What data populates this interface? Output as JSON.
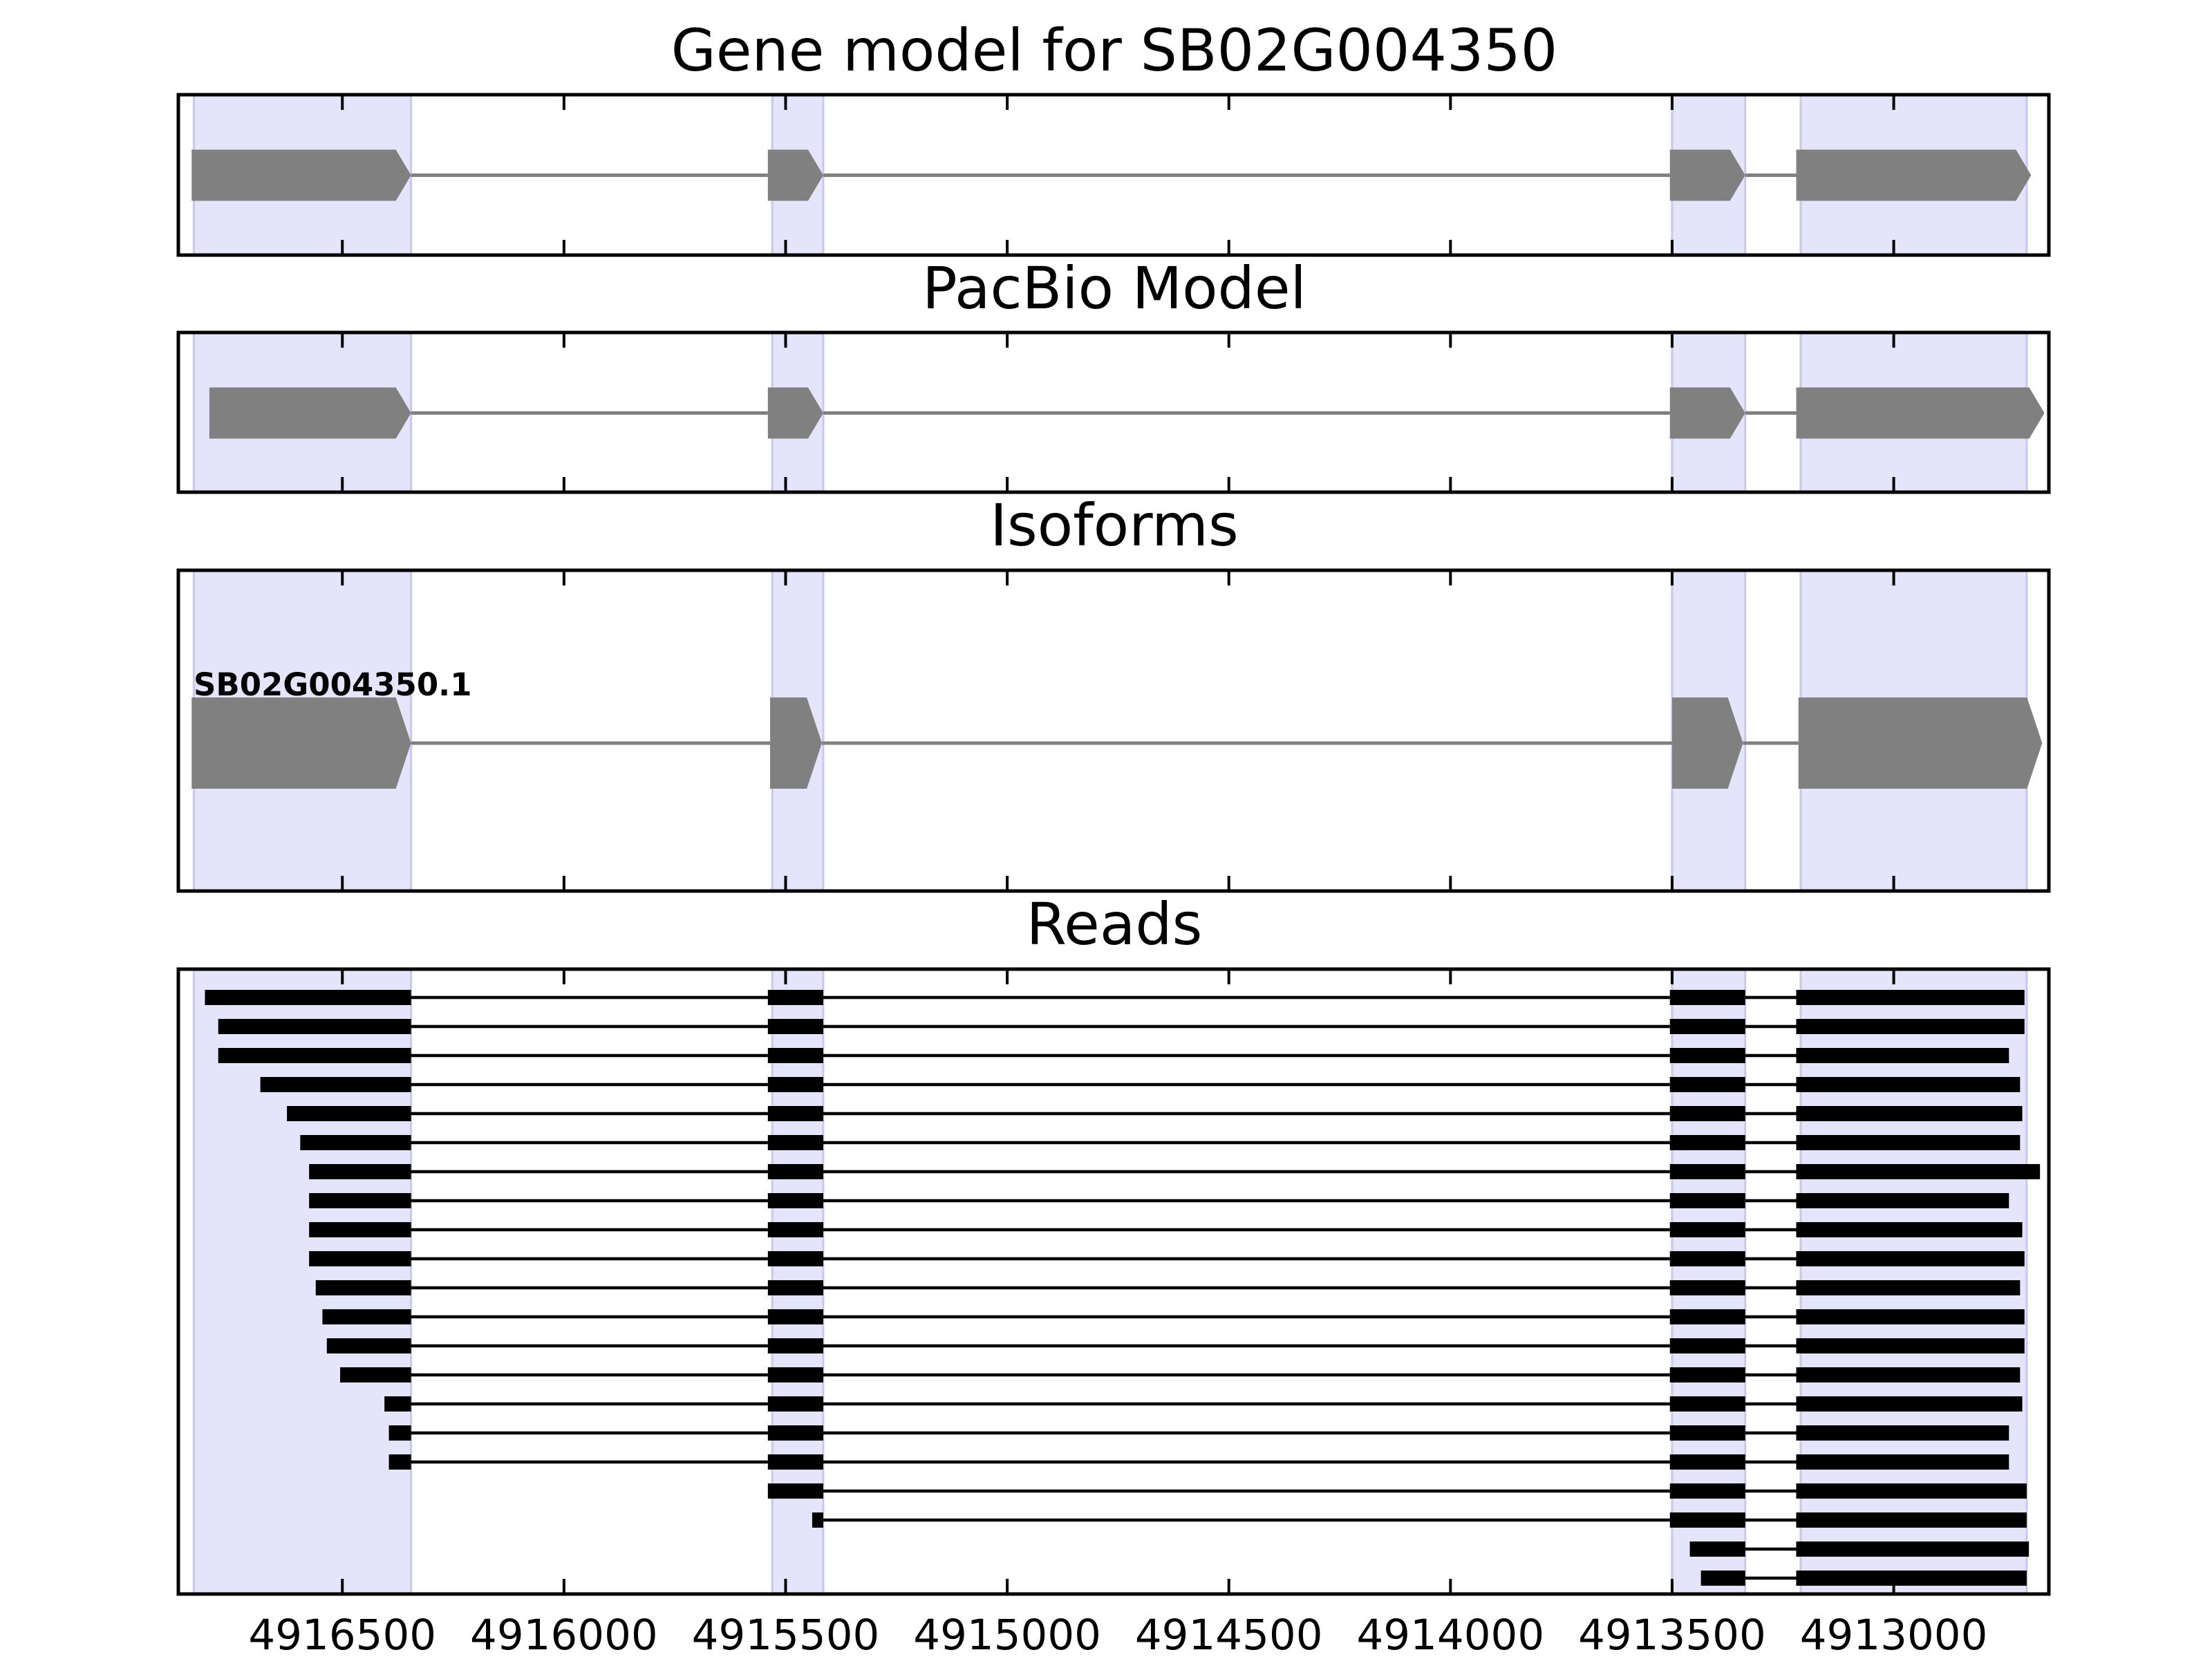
{
  "figure": {
    "panel_titles": [
      "Gene model for SB02G004350",
      "PacBio Model",
      "Isoforms",
      "Reads"
    ],
    "x_axis": {
      "ticks": [
        4916500,
        4916000,
        4915500,
        4915000,
        4914500,
        4914000,
        4913500,
        4913000
      ],
      "range": [
        4916870,
        4912650
      ],
      "direction": "decreasing left to right"
    },
    "isoform_label": "SB02G004350.1",
    "colors": {
      "exon_highlight": "#e4e4fb",
      "highlight_edge": "#c8c8ee",
      "model_exon": "#808080",
      "intron": "#808080",
      "read": "#000000",
      "frame": "#000000"
    }
  },
  "chart_data": {
    "type": "gene-structure",
    "strand": "-",
    "highlight_regions": [
      [
        4916835,
        4916345
      ],
      [
        4915530,
        4915415
      ],
      [
        4913500,
        4913335
      ],
      [
        4913210,
        4912700
      ]
    ],
    "gene_model": {
      "title": "Gene model for SB02G004350",
      "exons": [
        [
          4916840,
          4916345
        ],
        [
          4915540,
          4915415
        ],
        [
          4913505,
          4913335
        ],
        [
          4913220,
          4912690
        ]
      ]
    },
    "pacbio_model": {
      "title": "PacBio Model",
      "exons": [
        [
          4916800,
          4916345
        ],
        [
          4915540,
          4915415
        ],
        [
          4913505,
          4913335
        ],
        [
          4913220,
          4912660
        ]
      ]
    },
    "isoforms": [
      {
        "name": "SB02G004350.1",
        "exons": [
          [
            4916840,
            4916345
          ],
          [
            4915535,
            4915418
          ],
          [
            4913500,
            4913340
          ],
          [
            4913215,
            4912665
          ]
        ]
      }
    ],
    "reads": [
      [
        [
          4916810,
          4916345
        ],
        [
          4915540,
          4915415
        ],
        [
          4913505,
          4913335
        ],
        [
          4913220,
          4912705
        ]
      ],
      [
        [
          4916780,
          4916345
        ],
        [
          4915540,
          4915415
        ],
        [
          4913505,
          4913335
        ],
        [
          4913220,
          4912705
        ]
      ],
      [
        [
          4916780,
          4916345
        ],
        [
          4915540,
          4915415
        ],
        [
          4913505,
          4913335
        ],
        [
          4913220,
          4912740
        ]
      ],
      [
        [
          4916685,
          4916345
        ],
        [
          4915540,
          4915415
        ],
        [
          4913505,
          4913335
        ],
        [
          4913220,
          4912715
        ]
      ],
      [
        [
          4916625,
          4916345
        ],
        [
          4915540,
          4915415
        ],
        [
          4913505,
          4913335
        ],
        [
          4913220,
          4912710
        ]
      ],
      [
        [
          4916595,
          4916345
        ],
        [
          4915540,
          4915415
        ],
        [
          4913505,
          4913335
        ],
        [
          4913220,
          4912715
        ]
      ],
      [
        [
          4916575,
          4916345
        ],
        [
          4915540,
          4915415
        ],
        [
          4913505,
          4913335
        ],
        [
          4913220,
          4912670
        ]
      ],
      [
        [
          4916575,
          4916345
        ],
        [
          4915540,
          4915415
        ],
        [
          4913505,
          4913335
        ],
        [
          4913220,
          4912740
        ]
      ],
      [
        [
          4916575,
          4916345
        ],
        [
          4915540,
          4915415
        ],
        [
          4913505,
          4913335
        ],
        [
          4913220,
          4912710
        ]
      ],
      [
        [
          4916575,
          4916345
        ],
        [
          4915540,
          4915415
        ],
        [
          4913505,
          4913335
        ],
        [
          4913220,
          4912705
        ]
      ],
      [
        [
          4916560,
          4916345
        ],
        [
          4915540,
          4915415
        ],
        [
          4913505,
          4913335
        ],
        [
          4913220,
          4912715
        ]
      ],
      [
        [
          4916545,
          4916345
        ],
        [
          4915540,
          4915415
        ],
        [
          4913505,
          4913335
        ],
        [
          4913220,
          4912705
        ]
      ],
      [
        [
          4916535,
          4916345
        ],
        [
          4915540,
          4915415
        ],
        [
          4913505,
          4913335
        ],
        [
          4913220,
          4912705
        ]
      ],
      [
        [
          4916505,
          4916345
        ],
        [
          4915540,
          4915415
        ],
        [
          4913505,
          4913335
        ],
        [
          4913220,
          4912715
        ]
      ],
      [
        [
          4916405,
          4916345
        ],
        [
          4915540,
          4915415
        ],
        [
          4913505,
          4913335
        ],
        [
          4913220,
          4912710
        ]
      ],
      [
        [
          4916395,
          4916345
        ],
        [
          4915540,
          4915415
        ],
        [
          4913505,
          4913335
        ],
        [
          4913220,
          4912740
        ]
      ],
      [
        [
          4916395,
          4916345
        ],
        [
          4915540,
          4915415
        ],
        [
          4913505,
          4913335
        ],
        [
          4913220,
          4912740
        ]
      ],
      [
        [
          4915540,
          4915415
        ],
        [
          4913505,
          4913335
        ],
        [
          4913220,
          4912700
        ]
      ],
      [
        [
          4915440,
          4915415
        ],
        [
          4913505,
          4913335
        ],
        [
          4913220,
          4912700
        ]
      ],
      [
        [
          4913460,
          4913335
        ],
        [
          4913220,
          4912695
        ]
      ],
      [
        [
          4913435,
          4913335
        ],
        [
          4913220,
          4912700
        ]
      ]
    ]
  }
}
